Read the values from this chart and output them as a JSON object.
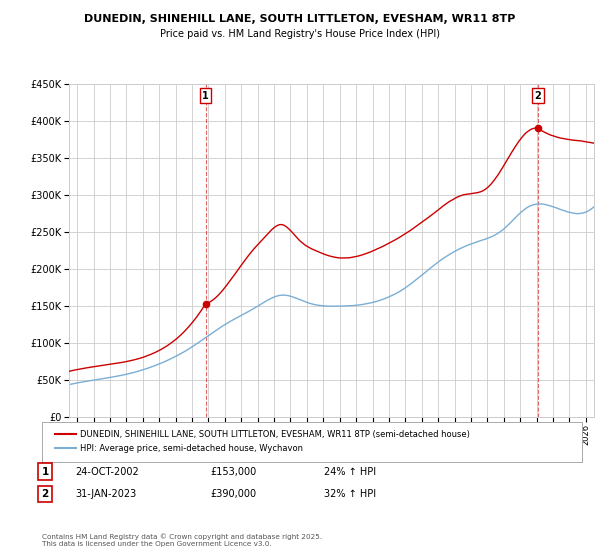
{
  "title": "DUNEDIN, SHINEHILL LANE, SOUTH LITTLETON, EVESHAM, WR11 8TP",
  "subtitle": "Price paid vs. HM Land Registry's House Price Index (HPI)",
  "legend_line1": "DUNEDIN, SHINEHILL LANE, SOUTH LITTLETON, EVESHAM, WR11 8TP (semi-detached house)",
  "legend_line2": "HPI: Average price, semi-detached house, Wychavon",
  "footer": "Contains HM Land Registry data © Crown copyright and database right 2025.\nThis data is licensed under the Open Government Licence v3.0.",
  "sale1_date": "24-OCT-2002",
  "sale1_price": "£153,000",
  "sale1_hpi": "24% ↑ HPI",
  "sale2_date": "31-JAN-2023",
  "sale2_price": "£390,000",
  "sale2_hpi": "32% ↑ HPI",
  "red_color": "#cc0000",
  "blue_color": "#7aaed4",
  "background_color": "#ffffff",
  "grid_color": "#cccccc",
  "ylim": [
    0,
    450000
  ],
  "xlim_start": 1994.5,
  "xlim_end": 2026.5,
  "sale1_x": 2002.82,
  "sale1_y": 153000,
  "sale2_x": 2023.08,
  "sale2_y": 390000
}
